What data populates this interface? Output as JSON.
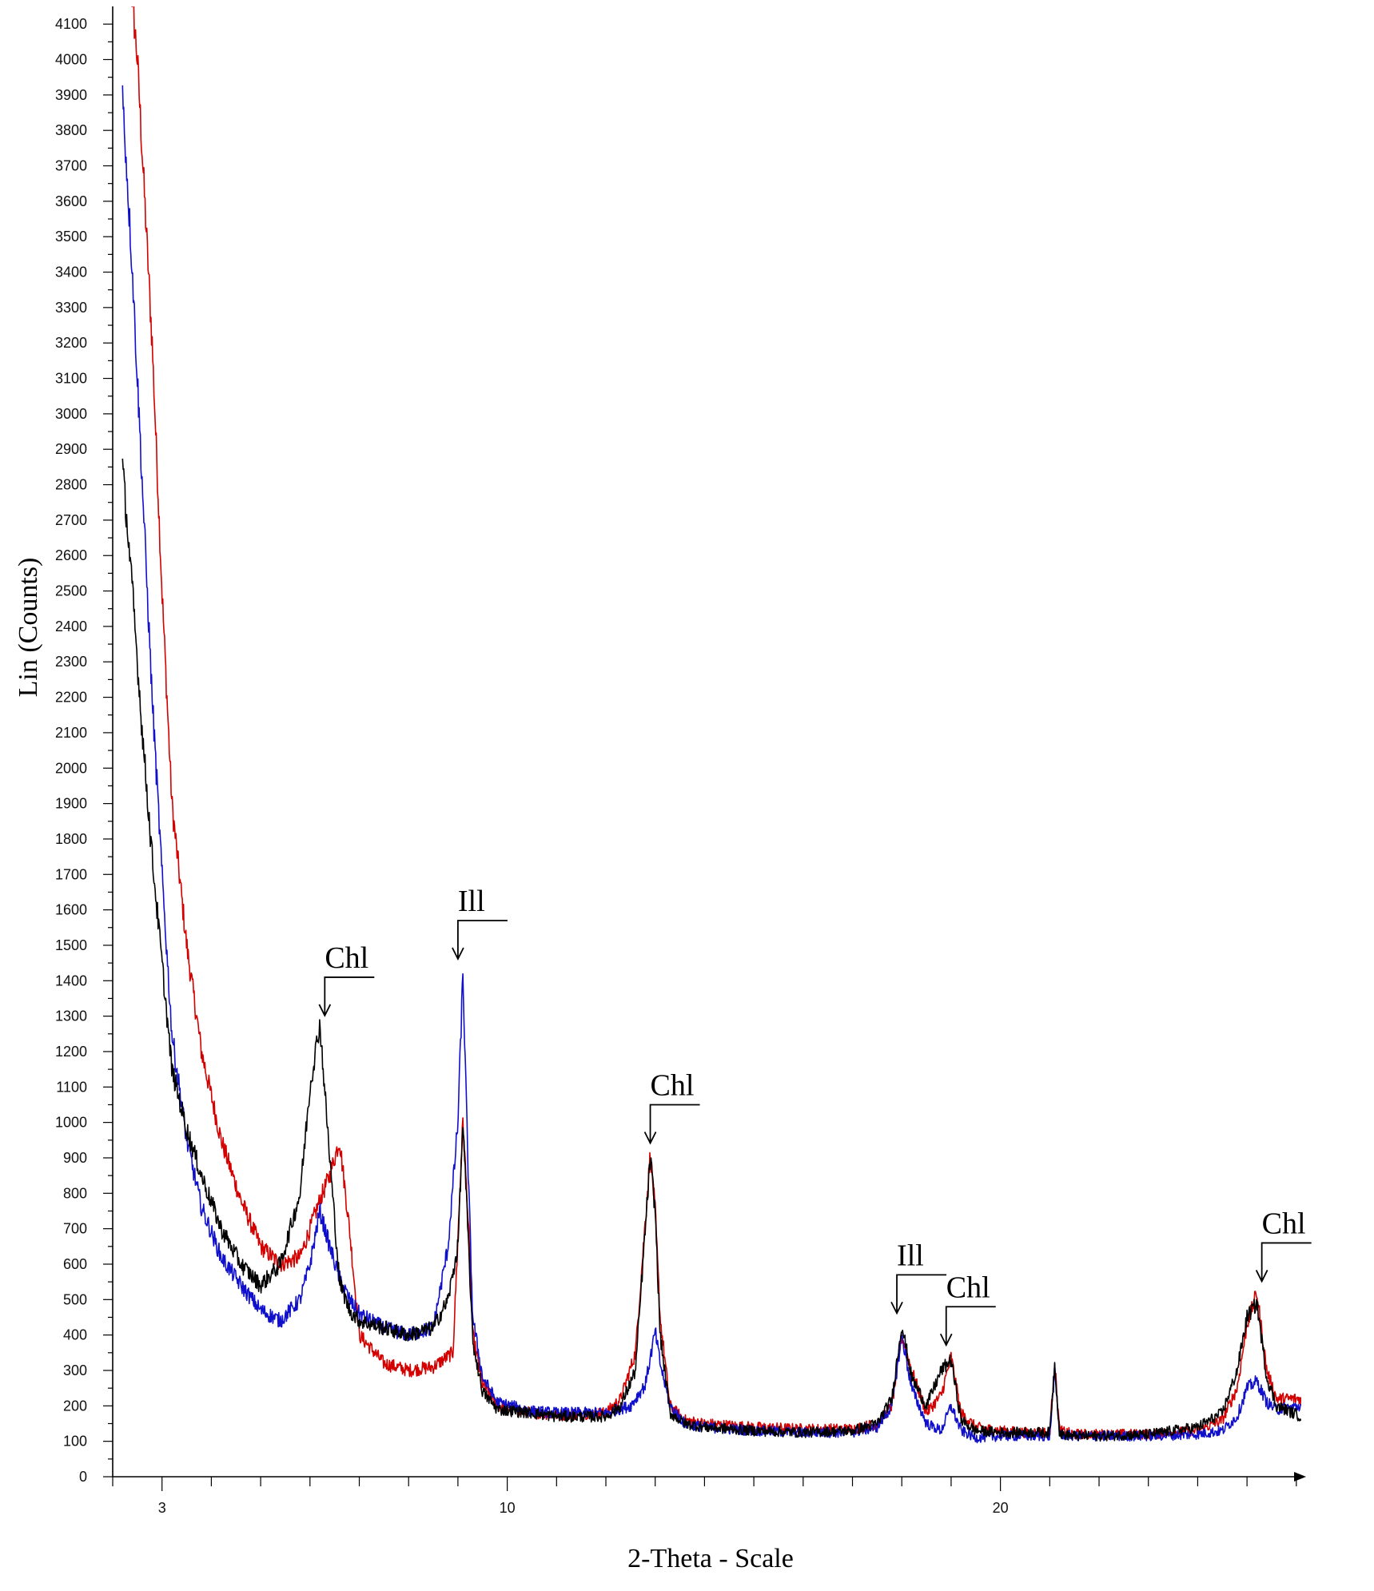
{
  "chart_data": {
    "type": "line",
    "xlabel": "2-Theta - Scale",
    "ylabel": "Lin (Counts)",
    "xlim": [
      2.0,
      26.1
    ],
    "ylim": [
      0,
      4150
    ],
    "x_ticks": [
      3,
      10,
      20
    ],
    "y_tick_step": 100,
    "legend": "none",
    "series": [
      {
        "color": "#d40000",
        "x": [
          2.2,
          2.5,
          2.8,
          3.0,
          3.2,
          3.5,
          3.8,
          4.2,
          4.6,
          5.0,
          5.4,
          5.8,
          6.0,
          6.2,
          6.4,
          6.6,
          6.8,
          7.0,
          7.5,
          8.0,
          8.5,
          8.9,
          9.1,
          9.2,
          9.3,
          9.5,
          9.8,
          10.5,
          11.0,
          12.0,
          12.3,
          12.6,
          12.9,
          13.0,
          13.1,
          13.3,
          13.6,
          14.0,
          15.0,
          16.0,
          17.0,
          17.5,
          17.8,
          18.0,
          18.2,
          18.5,
          18.8,
          19.0,
          19.2,
          19.5,
          20.0,
          20.5,
          21.0,
          21.1,
          21.2,
          21.5,
          22.0,
          23.0,
          24.0,
          24.5,
          24.8,
          25.0,
          25.2,
          25.4,
          25.6,
          26.1
        ],
        "y": [
          4500,
          4000,
          3200,
          2500,
          1900,
          1500,
          1200,
          950,
          780,
          650,
          600,
          620,
          700,
          780,
          850,
          950,
          700,
          400,
          320,
          300,
          310,
          350,
          1000,
          750,
          400,
          260,
          200,
          180,
          175,
          180,
          220,
          350,
          910,
          750,
          450,
          200,
          160,
          150,
          140,
          135,
          135,
          150,
          200,
          400,
          300,
          180,
          230,
          340,
          180,
          140,
          130,
          125,
          125,
          320,
          130,
          120,
          120,
          120,
          130,
          160,
          250,
          430,
          520,
          300,
          220,
          220
        ]
      },
      {
        "color": "#1010cc",
        "x": [
          2.2,
          2.4,
          2.6,
          2.8,
          3.0,
          3.2,
          3.5,
          3.8,
          4.2,
          4.6,
          5.0,
          5.4,
          5.8,
          6.0,
          6.2,
          6.4,
          6.6,
          6.8,
          7.0,
          7.5,
          8.0,
          8.5,
          8.8,
          9.0,
          9.1,
          9.2,
          9.3,
          9.5,
          9.8,
          10.5,
          11.0,
          12.0,
          12.5,
          12.8,
          13.0,
          13.1,
          13.3,
          13.6,
          14.0,
          15.0,
          16.0,
          17.0,
          17.5,
          17.8,
          18.0,
          18.2,
          18.5,
          18.8,
          19.0,
          19.2,
          19.5,
          20.0,
          20.5,
          21.0,
          21.1,
          21.2,
          21.5,
          22.0,
          23.0,
          24.0,
          24.5,
          24.8,
          25.0,
          25.2,
          25.4,
          25.6,
          26.1
        ],
        "y": [
          3900,
          3400,
          2800,
          2200,
          1700,
          1250,
          950,
          760,
          620,
          540,
          470,
          440,
          500,
          600,
          750,
          650,
          560,
          500,
          460,
          420,
          400,
          420,
          650,
          1000,
          1420,
          900,
          450,
          280,
          210,
          185,
          180,
          180,
          200,
          260,
          410,
          320,
          200,
          150,
          140,
          130,
          125,
          125,
          140,
          200,
          400,
          250,
          150,
          130,
          200,
          130,
          110,
          115,
          115,
          115,
          300,
          120,
          115,
          115,
          115,
          120,
          130,
          170,
          250,
          270,
          210,
          190,
          200
        ]
      },
      {
        "color": "#000000",
        "x": [
          2.2,
          2.4,
          2.6,
          2.8,
          3.0,
          3.2,
          3.5,
          3.8,
          4.2,
          4.6,
          5.0,
          5.4,
          5.8,
          6.0,
          6.2,
          6.4,
          6.6,
          6.8,
          7.0,
          7.5,
          8.0,
          8.5,
          8.8,
          9.0,
          9.1,
          9.2,
          9.3,
          9.5,
          9.8,
          10.5,
          11.0,
          12.0,
          12.3,
          12.6,
          12.9,
          13.0,
          13.1,
          13.3,
          13.6,
          14.0,
          15.0,
          16.0,
          17.0,
          17.5,
          17.8,
          18.0,
          18.2,
          18.5,
          18.8,
          19.0,
          19.2,
          19.5,
          20.0,
          20.5,
          21.0,
          21.1,
          21.2,
          21.5,
          22.0,
          23.0,
          24.0,
          24.5,
          24.8,
          25.0,
          25.2,
          25.4,
          25.6,
          26.1
        ],
        "y": [
          2850,
          2500,
          2100,
          1750,
          1450,
          1150,
          980,
          850,
          700,
          600,
          540,
          600,
          800,
          1100,
          1280,
          900,
          550,
          470,
          440,
          420,
          400,
          420,
          500,
          650,
          1000,
          700,
          380,
          240,
          190,
          180,
          170,
          170,
          200,
          300,
          900,
          750,
          400,
          180,
          150,
          140,
          130,
          125,
          130,
          150,
          220,
          430,
          280,
          200,
          300,
          330,
          160,
          130,
          125,
          125,
          125,
          320,
          120,
          115,
          115,
          120,
          140,
          180,
          300,
          450,
          490,
          280,
          200,
          170
        ]
      }
    ],
    "annotations": [
      {
        "text": "Chl",
        "x": 6.3,
        "y": 1270
      },
      {
        "text": "Ill",
        "x": 9.0,
        "y": 1430
      },
      {
        "text": "Chl",
        "x": 12.9,
        "y": 910
      },
      {
        "text": "Ill",
        "x": 17.9,
        "y": 430
      },
      {
        "text": "Chl",
        "x": 18.9,
        "y": 340
      },
      {
        "text": "Chl",
        "x": 25.3,
        "y": 520
      }
    ]
  }
}
